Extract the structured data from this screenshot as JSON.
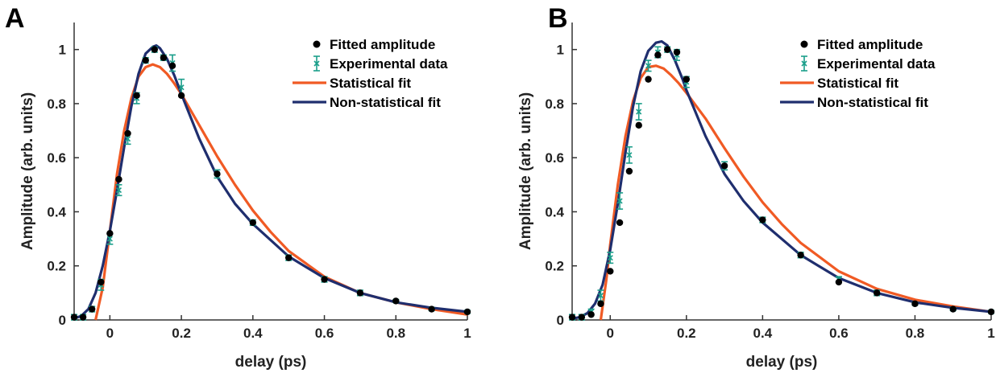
{
  "panels": [
    {
      "letter": "A"
    },
    {
      "letter": "B"
    }
  ],
  "colors": {
    "fitted_amplitude": "#000000",
    "experimental_data": "#1a9e8a",
    "statistical_fit": "#f05a24",
    "non_statistical_fit": "#1f2e6e",
    "axis": "#333333"
  },
  "chart_data": [
    {
      "type": "scatter",
      "panel": "A",
      "xlabel": "delay (ps)",
      "ylabel": "Amplitude (arb. units)",
      "xlim": [
        -0.1,
        1
      ],
      "ylim": [
        0,
        1.1
      ],
      "xticks": [
        0,
        0.2,
        0.4,
        0.6,
        0.8,
        1
      ],
      "xtick_labels": [
        "0",
        "0.2",
        "0.4",
        "0.6",
        "0.8",
        "1"
      ],
      "yticks": [
        0,
        0.2,
        0.4,
        0.6,
        0.8,
        1
      ],
      "ytick_labels": [
        "0",
        "0.2",
        "0.4",
        "0.6",
        "0.8",
        "1"
      ],
      "legend": [
        "Fitted amplitude",
        "Experimental data",
        "Statistical fit",
        "Non-statistical fit"
      ],
      "legend_position": "top-right",
      "grid": false,
      "series": [
        {
          "name": "Fitted amplitude",
          "kind": "points",
          "x": [
            -0.1,
            -0.075,
            -0.05,
            -0.025,
            0,
            0.025,
            0.05,
            0.075,
            0.1,
            0.125,
            0.15,
            0.175,
            0.2,
            0.3,
            0.4,
            0.5,
            0.6,
            0.7,
            0.8,
            0.9,
            1.0
          ],
          "y": [
            0.01,
            0.01,
            0.04,
            0.14,
            0.32,
            0.52,
            0.69,
            0.83,
            0.96,
            1.0,
            0.97,
            0.94,
            0.83,
            0.54,
            0.36,
            0.23,
            0.15,
            0.1,
            0.07,
            0.04,
            0.03
          ]
        },
        {
          "name": "Experimental data",
          "kind": "errorbars",
          "x": [
            -0.1,
            -0.075,
            -0.05,
            -0.025,
            0,
            0.025,
            0.05,
            0.075,
            0.1,
            0.125,
            0.15,
            0.175,
            0.2,
            0.3,
            0.4,
            0.5,
            0.6,
            0.7,
            0.8,
            0.9,
            1.0
          ],
          "y": [
            0.01,
            0.01,
            0.04,
            0.13,
            0.3,
            0.48,
            0.67,
            0.82,
            0.96,
            1.0,
            0.97,
            0.95,
            0.86,
            0.54,
            0.36,
            0.23,
            0.15,
            0.1,
            0.07,
            0.04,
            0.03
          ],
          "err": [
            0.01,
            0.01,
            0.01,
            0.02,
            0.02,
            0.02,
            0.02,
            0.02,
            0.01,
            0.01,
            0.01,
            0.03,
            0.03,
            0.015,
            0.01,
            0.01,
            0.01,
            0.01,
            0.005,
            0.005,
            0.005
          ]
        },
        {
          "name": "Statistical fit",
          "kind": "line",
          "x": [
            -0.04,
            -0.02,
            0,
            0.02,
            0.04,
            0.06,
            0.08,
            0.1,
            0.12,
            0.14,
            0.16,
            0.18,
            0.2,
            0.25,
            0.3,
            0.35,
            0.4,
            0.45,
            0.5,
            0.6,
            0.7,
            0.8,
            0.9,
            1.0
          ],
          "y": [
            0.0,
            0.12,
            0.33,
            0.54,
            0.7,
            0.82,
            0.9,
            0.935,
            0.945,
            0.935,
            0.91,
            0.875,
            0.835,
            0.72,
            0.605,
            0.5,
            0.405,
            0.325,
            0.255,
            0.16,
            0.1,
            0.065,
            0.04,
            0.02
          ]
        },
        {
          "name": "Non-statistical fit",
          "kind": "line",
          "x": [
            -0.1,
            -0.08,
            -0.06,
            -0.04,
            -0.02,
            0,
            0.02,
            0.04,
            0.06,
            0.08,
            0.1,
            0.12,
            0.13,
            0.14,
            0.16,
            0.18,
            0.2,
            0.25,
            0.3,
            0.35,
            0.4,
            0.5,
            0.6,
            0.7,
            0.8,
            0.9,
            1.0
          ],
          "y": [
            0.005,
            0.015,
            0.04,
            0.1,
            0.2,
            0.33,
            0.48,
            0.64,
            0.79,
            0.91,
            0.985,
            1.01,
            1.015,
            1.005,
            0.965,
            0.905,
            0.835,
            0.67,
            0.53,
            0.43,
            0.355,
            0.235,
            0.155,
            0.1,
            0.065,
            0.045,
            0.03
          ]
        }
      ]
    },
    {
      "type": "scatter",
      "panel": "B",
      "xlabel": "delay (ps)",
      "ylabel": "Amplitude (arb. units)",
      "xlim": [
        -0.1,
        1
      ],
      "ylim": [
        0,
        1.1
      ],
      "xticks": [
        0,
        0.2,
        0.4,
        0.6,
        0.8,
        1
      ],
      "xtick_labels": [
        "0",
        "0.2",
        "0.4",
        "0.6",
        "0.8",
        "1"
      ],
      "yticks": [
        0,
        0.2,
        0.4,
        0.6,
        0.8,
        1
      ],
      "ytick_labels": [
        "0",
        "0.2",
        "0.4",
        "0.6",
        "0.8",
        "1"
      ],
      "legend": [
        "Fitted amplitude",
        "Experimental data",
        "Statistical fit",
        "Non-statistical fit"
      ],
      "legend_position": "top-right",
      "grid": false,
      "series": [
        {
          "name": "Fitted amplitude",
          "kind": "points",
          "x": [
            -0.1,
            -0.075,
            -0.05,
            -0.025,
            0,
            0.025,
            0.05,
            0.075,
            0.1,
            0.125,
            0.15,
            0.175,
            0.2,
            0.3,
            0.4,
            0.5,
            0.6,
            0.7,
            0.8,
            0.9,
            1.0
          ],
          "y": [
            0.01,
            0.01,
            0.02,
            0.06,
            0.18,
            0.36,
            0.55,
            0.72,
            0.89,
            0.98,
            1.0,
            0.99,
            0.89,
            0.57,
            0.37,
            0.24,
            0.14,
            0.1,
            0.06,
            0.04,
            0.03
          ]
        },
        {
          "name": "Experimental data",
          "kind": "errorbars",
          "x": [
            -0.1,
            -0.075,
            -0.05,
            -0.025,
            0,
            0.025,
            0.05,
            0.075,
            0.1,
            0.125,
            0.15,
            0.175,
            0.2,
            0.3,
            0.4,
            0.5,
            0.6,
            0.7,
            0.8,
            0.9,
            1.0
          ],
          "y": [
            0.01,
            0.01,
            0.03,
            0.09,
            0.23,
            0.44,
            0.61,
            0.77,
            0.94,
            0.99,
            1.0,
            0.98,
            0.88,
            0.57,
            0.37,
            0.24,
            0.15,
            0.1,
            0.06,
            0.04,
            0.03
          ],
          "err": [
            0.01,
            0.01,
            0.01,
            0.02,
            0.02,
            0.03,
            0.03,
            0.03,
            0.02,
            0.02,
            0.01,
            0.02,
            0.02,
            0.015,
            0.01,
            0.01,
            0.01,
            0.01,
            0.005,
            0.005,
            0.005
          ]
        },
        {
          "name": "Statistical fit",
          "kind": "line",
          "x": [
            -0.025,
            -0.01,
            0,
            0.02,
            0.04,
            0.06,
            0.08,
            0.1,
            0.12,
            0.14,
            0.16,
            0.18,
            0.2,
            0.25,
            0.3,
            0.35,
            0.4,
            0.45,
            0.5,
            0.6,
            0.7,
            0.8,
            0.9,
            1.0
          ],
          "y": [
            0.0,
            0.15,
            0.28,
            0.5,
            0.68,
            0.81,
            0.895,
            0.935,
            0.94,
            0.93,
            0.905,
            0.875,
            0.84,
            0.745,
            0.635,
            0.53,
            0.435,
            0.355,
            0.285,
            0.18,
            0.115,
            0.075,
            0.05,
            0.03
          ]
        },
        {
          "name": "Non-statistical fit",
          "kind": "line",
          "x": [
            -0.1,
            -0.08,
            -0.06,
            -0.04,
            -0.02,
            0,
            0.02,
            0.04,
            0.06,
            0.08,
            0.1,
            0.12,
            0.135,
            0.15,
            0.17,
            0.19,
            0.2,
            0.25,
            0.3,
            0.35,
            0.4,
            0.5,
            0.6,
            0.7,
            0.8,
            0.9,
            1.0
          ],
          "y": [
            0.005,
            0.01,
            0.025,
            0.06,
            0.13,
            0.26,
            0.43,
            0.62,
            0.79,
            0.92,
            0.995,
            1.025,
            1.03,
            1.015,
            0.96,
            0.89,
            0.85,
            0.68,
            0.54,
            0.44,
            0.36,
            0.24,
            0.155,
            0.1,
            0.065,
            0.045,
            0.03
          ]
        }
      ]
    }
  ]
}
